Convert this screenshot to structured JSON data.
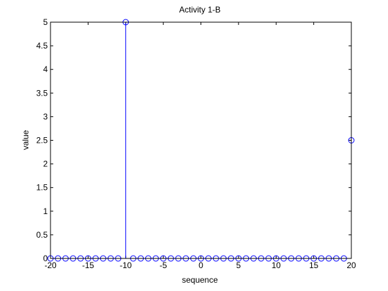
{
  "chart_data": {
    "type": "stem",
    "title": "Activity 1-B",
    "xlabel": "sequence",
    "ylabel": "value",
    "xlim": [
      -20,
      20
    ],
    "ylim": [
      0,
      5
    ],
    "xticks": [
      "-20",
      "-15",
      "-10",
      "-5",
      "0",
      "5",
      "10",
      "15",
      "20"
    ],
    "yticks": [
      "0",
      "0.5",
      "1",
      "1.5",
      "2",
      "2.5",
      "3",
      "3.5",
      "4",
      "4.5",
      "5"
    ],
    "grid": false,
    "series_color": "#0000ff",
    "x": [
      -20,
      -19,
      -18,
      -17,
      -16,
      -15,
      -14,
      -13,
      -12,
      -11,
      -10,
      -9,
      -8,
      -7,
      -6,
      -5,
      -4,
      -3,
      -2,
      -1,
      0,
      1,
      2,
      3,
      4,
      5,
      6,
      7,
      8,
      9,
      10,
      11,
      12,
      13,
      14,
      15,
      16,
      17,
      18,
      19,
      20
    ],
    "values": [
      0,
      0,
      0,
      0,
      0,
      0,
      0,
      0,
      0,
      0,
      5,
      0,
      0,
      0,
      0,
      0,
      0,
      0,
      0,
      0,
      0,
      0,
      0,
      0,
      0,
      0,
      0,
      0,
      0,
      0,
      0,
      0,
      0,
      0,
      0,
      0,
      0,
      0,
      0,
      0,
      2.5
    ]
  }
}
